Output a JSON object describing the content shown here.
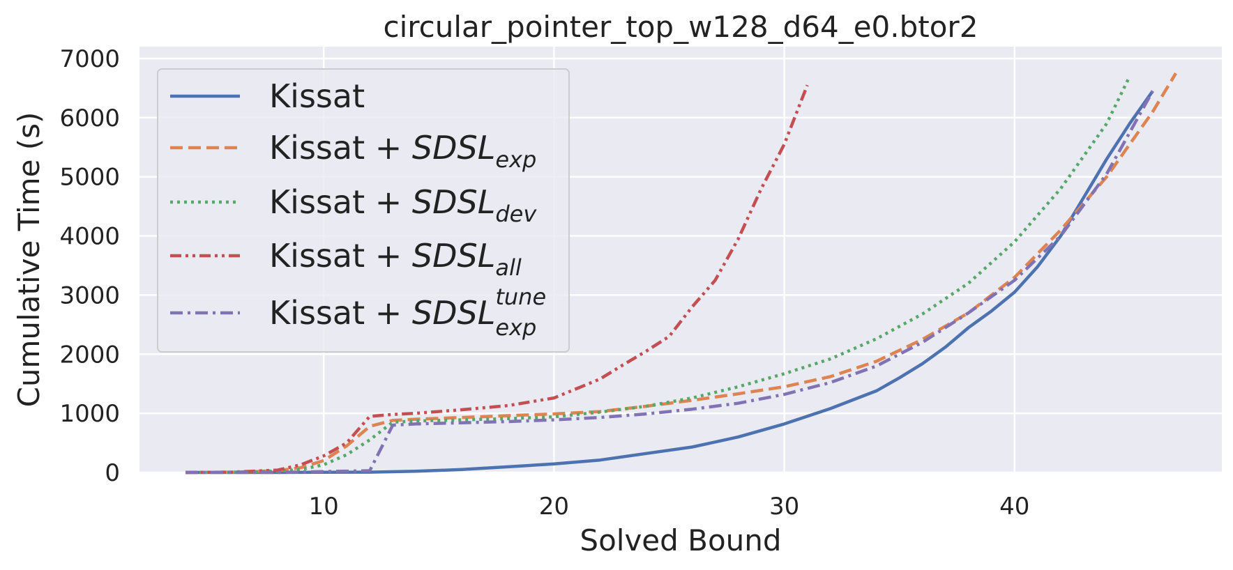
{
  "chart_data": {
    "type": "line",
    "title": "circular_pointer_top_w128_d64_e0.btor2",
    "xlabel": "Solved Bound",
    "ylabel": "Cumulative Time (s)",
    "xlim": [
      2,
      49
    ],
    "ylim": [
      0,
      7200
    ],
    "xticks": [
      10,
      20,
      30,
      40
    ],
    "yticks": [
      0,
      1000,
      2000,
      3000,
      4000,
      5000,
      6000,
      7000
    ],
    "xtick_labels": [
      "10",
      "20",
      "30",
      "40"
    ],
    "ytick_labels": [
      "0",
      "1000",
      "2000",
      "3000",
      "4000",
      "5000",
      "6000",
      "7000"
    ],
    "grid": true,
    "background": "#eaeaf2",
    "legend_position": "upper-left",
    "series": [
      {
        "name": "Kissat",
        "legend_base": "Kissat",
        "color": "#4c72b0",
        "dash": "solid",
        "x": [
          4,
          6,
          8,
          10,
          12,
          14,
          16,
          18,
          20,
          22,
          24,
          26,
          28,
          30,
          32,
          34,
          35,
          36,
          37,
          38,
          39,
          40,
          41,
          42,
          43,
          44,
          45,
          46
        ],
        "y": [
          0,
          0,
          0,
          2,
          5,
          20,
          50,
          95,
          145,
          210,
          320,
          430,
          600,
          820,
          1080,
          1380,
          1600,
          1840,
          2120,
          2450,
          2730,
          3050,
          3480,
          4000,
          4650,
          5300,
          5900,
          6450
        ]
      },
      {
        "name": "Kissat + SDSL_exp",
        "legend_base": "Kissat + ",
        "legend_main": "SDSL",
        "legend_sub": "exp",
        "legend_sup": "",
        "color": "#dd8452",
        "dash": "dashed",
        "x": [
          4,
          6,
          8,
          9,
          10,
          11,
          12,
          13,
          14,
          16,
          18,
          20,
          22,
          24,
          26,
          28,
          30,
          32,
          34,
          36,
          38,
          40,
          42,
          44,
          46,
          47
        ],
        "y": [
          0,
          5,
          30,
          80,
          200,
          450,
          780,
          880,
          900,
          930,
          960,
          990,
          1030,
          1120,
          1220,
          1330,
          1450,
          1620,
          1880,
          2250,
          2700,
          3300,
          4100,
          5000,
          6100,
          6750
        ]
      },
      {
        "name": "Kissat + SDSL_dev",
        "legend_base": "Kissat + ",
        "legend_main": "SDSL",
        "legend_sub": "dev",
        "legend_sup": "",
        "color": "#55a868",
        "dash": "dotted",
        "x": [
          4,
          6,
          8,
          9,
          10,
          11,
          12,
          13,
          14,
          16,
          18,
          20,
          22,
          24,
          26,
          28,
          30,
          32,
          34,
          36,
          38,
          40,
          42,
          44,
          45
        ],
        "y": [
          0,
          5,
          20,
          50,
          130,
          300,
          550,
          850,
          870,
          890,
          910,
          940,
          1020,
          1120,
          1260,
          1450,
          1670,
          1920,
          2260,
          2680,
          3200,
          3900,
          4800,
          5900,
          6700
        ]
      },
      {
        "name": "Kissat + SDSL_all",
        "legend_base": "Kissat + ",
        "legend_main": "SDSL",
        "legend_sub": "all",
        "legend_sup": "",
        "color": "#c44e52",
        "dash": "dashdotdot",
        "x": [
          4,
          6,
          8,
          9,
          10,
          11,
          12,
          13,
          14,
          16,
          18,
          20,
          22,
          23,
          24,
          25,
          26,
          27,
          28,
          29,
          30,
          31
        ],
        "y": [
          0,
          5,
          40,
          130,
          280,
          500,
          950,
          980,
          1000,
          1060,
          1130,
          1260,
          1580,
          1820,
          2050,
          2300,
          2800,
          3250,
          3950,
          4800,
          5550,
          6550
        ]
      },
      {
        "name": "Kissat + SDSL_exp^tune",
        "legend_base": "Kissat + ",
        "legend_main": "SDSL",
        "legend_sub": "exp",
        "legend_sup": "tune",
        "color": "#8172b3",
        "dash": "dashdot",
        "x": [
          4,
          8,
          12,
          13,
          14,
          16,
          18,
          20,
          22,
          24,
          26,
          28,
          30,
          32,
          34,
          36,
          38,
          40,
          42,
          44,
          46
        ],
        "y": [
          0,
          0,
          30,
          800,
          820,
          840,
          860,
          890,
          930,
          990,
          1070,
          1170,
          1320,
          1520,
          1800,
          2200,
          2700,
          3250,
          4000,
          5050,
          6450
        ]
      }
    ]
  }
}
